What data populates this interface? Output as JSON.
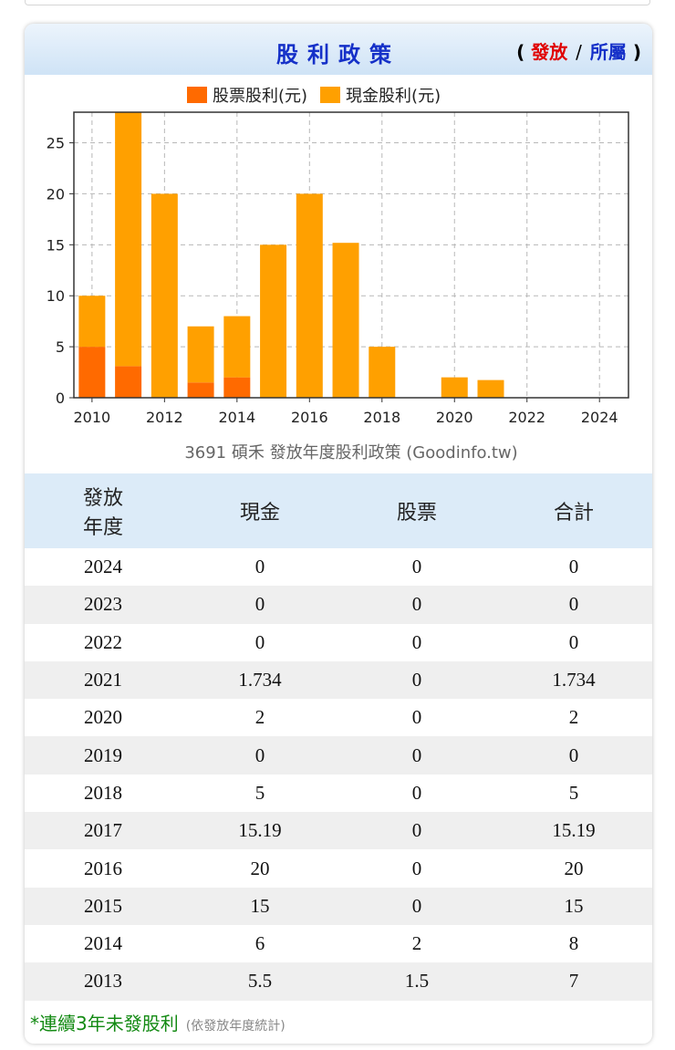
{
  "header": {
    "title": "股利政策",
    "link_open": "(",
    "link_issue": "發放",
    "link_separator": "/",
    "link_belong": "所屬",
    "link_close": ")"
  },
  "colors": {
    "stock_dividend": "#ff6a00",
    "cash_dividend": "#ffa000",
    "title_blue": "#1530c8",
    "link_red": "#e00000",
    "note_green": "#138a13"
  },
  "chart_data": {
    "type": "bar",
    "stacked": true,
    "caption": "3691 碩禾 發放年度股利政策 (Goodinfo.tw)",
    "x": [
      2010,
      2011,
      2012,
      2013,
      2014,
      2015,
      2016,
      2017,
      2018,
      2019,
      2020,
      2021,
      2022,
      2023,
      2024
    ],
    "xticks": [
      "2010",
      "2012",
      "2014",
      "2016",
      "2018",
      "2020",
      "2022",
      "2024"
    ],
    "yticks": [
      "0",
      "5",
      "10",
      "15",
      "20",
      "25"
    ],
    "ylim": [
      0,
      28
    ],
    "xlim": [
      2009.5,
      2024.8
    ],
    "grid": true,
    "legend_position": "top-center",
    "series": [
      {
        "name": "股票股利(元)",
        "color": "#ff6a00",
        "values": [
          5,
          3.1,
          0,
          1.5,
          2,
          0,
          0,
          0,
          0,
          0,
          0,
          0,
          0,
          0,
          0
        ]
      },
      {
        "name": "現金股利(元)",
        "color": "#ffa000",
        "values": [
          5,
          24.9,
          20,
          5.5,
          6,
          15,
          20,
          15.19,
          5,
          0,
          2,
          1.734,
          0,
          0,
          0
        ]
      }
    ]
  },
  "table": {
    "headers": [
      "發放\n年度",
      "現金",
      "股票",
      "合計"
    ],
    "rows": [
      [
        "2024",
        "0",
        "0",
        "0"
      ],
      [
        "2023",
        "0",
        "0",
        "0"
      ],
      [
        "2022",
        "0",
        "0",
        "0"
      ],
      [
        "2021",
        "1.734",
        "0",
        "1.734"
      ],
      [
        "2020",
        "2",
        "0",
        "2"
      ],
      [
        "2019",
        "0",
        "0",
        "0"
      ],
      [
        "2018",
        "5",
        "0",
        "5"
      ],
      [
        "2017",
        "15.19",
        "0",
        "15.19"
      ],
      [
        "2016",
        "20",
        "0",
        "20"
      ],
      [
        "2015",
        "15",
        "0",
        "15"
      ],
      [
        "2014",
        "6",
        "2",
        "8"
      ],
      [
        "2013",
        "5.5",
        "1.5",
        "7"
      ]
    ]
  },
  "note": {
    "main": "*連續3年未發股利",
    "detail": "(依發放年度統計)"
  }
}
